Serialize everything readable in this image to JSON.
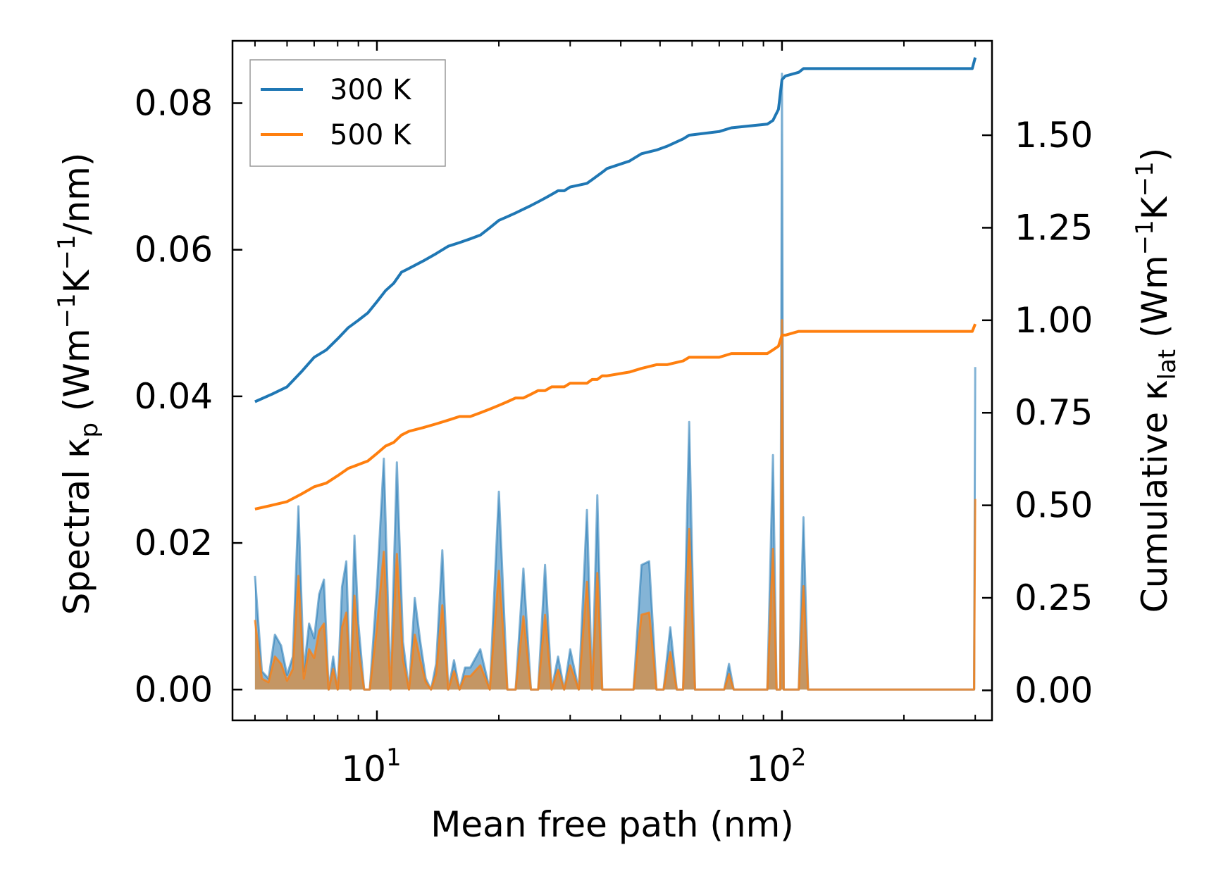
{
  "chart_data": {
    "type": "line",
    "xlabel": "Mean free path (nm)",
    "ylabel_left": {
      "main": "Spectral κ",
      "sub": "p",
      "units_open": " (Wm",
      "exp1": "−1",
      "mid": "K",
      "exp2": "−1",
      "units_close": "/nm)"
    },
    "ylabel_right": {
      "main": "Cumulative κ",
      "sub": "lat",
      "units_open": " (Wm",
      "exp1": "−1",
      "mid": "K",
      "exp2": "−1",
      "units_close": ")"
    },
    "x_scale": "log",
    "xlim": [
      4.4,
      330
    ],
    "ylim_left": [
      -0.0042,
      0.0885
    ],
    "ylim_right": [
      -0.081,
      1.755
    ],
    "x_ticks": [
      {
        "value": 10,
        "base": "10",
        "exp": "1"
      },
      {
        "value": 100,
        "base": "10",
        "exp": "2"
      }
    ],
    "y_ticks_left": [
      {
        "value": 0.0,
        "label": "0.00"
      },
      {
        "value": 0.02,
        "label": "0.02"
      },
      {
        "value": 0.04,
        "label": "0.04"
      },
      {
        "value": 0.06,
        "label": "0.06"
      },
      {
        "value": 0.08,
        "label": "0.08"
      }
    ],
    "y_ticks_right": [
      {
        "value": 0.0,
        "label": "0.00"
      },
      {
        "value": 0.25,
        "label": "0.25"
      },
      {
        "value": 0.5,
        "label": "0.50"
      },
      {
        "value": 0.75,
        "label": "0.75"
      },
      {
        "value": 1.0,
        "label": "1.00"
      },
      {
        "value": 1.25,
        "label": "1.25"
      },
      {
        "value": 1.5,
        "label": "1.50"
      }
    ],
    "legend": {
      "position": "top-left",
      "entries": [
        "300 K",
        "500 K"
      ]
    },
    "colors": {
      "s300": "#1f77b4",
      "s500": "#ff7f0e",
      "fill300": "#1f77b4",
      "fill500": "#d98c3e"
    },
    "spectral_series": [
      {
        "name": "300 K",
        "axis": "left",
        "x": [
          5.0,
          5.2,
          5.4,
          5.6,
          5.8,
          6.0,
          6.2,
          6.4,
          6.6,
          6.8,
          7.0,
          7.2,
          7.4,
          7.6,
          7.8,
          8.0,
          8.2,
          8.4,
          8.6,
          8.8,
          9.0,
          9.3,
          9.6,
          10.0,
          10.4,
          10.8,
          11.2,
          11.6,
          12.0,
          12.4,
          12.8,
          13.2,
          13.6,
          14.0,
          14.5,
          15.0,
          15.5,
          16.0,
          16.5,
          17.0,
          18.0,
          19.0,
          20.0,
          21.0,
          22.0,
          23.0,
          24.0,
          25.0,
          26.0,
          27.0,
          28.0,
          29.0,
          30.0,
          31.5,
          33.0,
          34.0,
          35.0,
          36.0,
          37.0,
          39.0,
          41.0,
          43.0,
          45.0,
          47.0,
          49.0,
          51.0,
          53.0,
          55.0,
          57.0,
          59.0,
          61.0,
          64.0,
          68.0,
          72.0,
          74.0,
          76.0,
          80.0,
          84.0,
          88.0,
          92.0,
          95.0,
          97.0,
          99.0,
          100.0,
          101.0,
          103.0,
          106.0,
          110.0,
          113.0,
          116.0,
          120.0,
          140.0,
          200.0,
          250.0,
          290.0,
          298.0,
          300.0
        ],
        "values": [
          0.0155,
          0.0025,
          0.0015,
          0.0075,
          0.006,
          0.002,
          0.0045,
          0.025,
          0.0025,
          0.009,
          0.007,
          0.013,
          0.015,
          0.0,
          0.0045,
          0.0,
          0.014,
          0.0175,
          0.0,
          0.021,
          0.009,
          0.0,
          0.0,
          0.014,
          0.0315,
          0.0,
          0.031,
          0.0065,
          0.0,
          0.0125,
          0.0065,
          0.0015,
          0.0,
          0.0035,
          0.019,
          0.0,
          0.004,
          0.0,
          0.003,
          0.003,
          0.0055,
          0.0,
          0.027,
          0.0,
          0.0,
          0.0165,
          0.0,
          0.0,
          0.017,
          0.0,
          0.0045,
          0.0,
          0.0055,
          0.0,
          0.0245,
          0.0,
          0.0265,
          0.0,
          0.0,
          0.0,
          0.0,
          0.0,
          0.017,
          0.0175,
          0.0,
          0.0,
          0.0085,
          0.0,
          0.0,
          0.0365,
          0.0,
          0.0,
          0.0,
          0.0,
          0.0035,
          0.0,
          0.0,
          0.0,
          0.0,
          0.0,
          0.032,
          0.0,
          0.0,
          0.084,
          0.0,
          0.0,
          0.0,
          0.0,
          0.0235,
          0.0,
          0.0,
          0.0,
          0.0,
          0.0,
          0.0,
          0.0,
          0.044
        ]
      },
      {
        "name": "500 K",
        "axis": "left",
        "x": [
          5.0,
          5.2,
          5.4,
          5.6,
          5.8,
          6.0,
          6.2,
          6.4,
          6.6,
          6.8,
          7.0,
          7.2,
          7.4,
          7.6,
          7.8,
          8.0,
          8.2,
          8.4,
          8.6,
          8.8,
          9.0,
          9.3,
          9.6,
          10.0,
          10.4,
          10.8,
          11.2,
          11.6,
          12.0,
          12.4,
          12.8,
          13.2,
          13.6,
          14.0,
          14.5,
          15.0,
          15.5,
          16.0,
          16.5,
          17.0,
          18.0,
          19.0,
          20.0,
          21.0,
          22.0,
          23.0,
          24.0,
          25.0,
          26.0,
          27.0,
          28.0,
          29.0,
          30.0,
          31.5,
          33.0,
          34.0,
          35.0,
          36.0,
          37.0,
          39.0,
          41.0,
          43.0,
          45.0,
          47.0,
          49.0,
          51.0,
          53.0,
          55.0,
          57.0,
          59.0,
          61.0,
          64.0,
          68.0,
          72.0,
          74.0,
          76.0,
          80.0,
          84.0,
          88.0,
          92.0,
          95.0,
          97.0,
          99.0,
          100.0,
          101.0,
          103.0,
          106.0,
          110.0,
          113.0,
          116.0,
          120.0,
          140.0,
          200.0,
          250.0,
          290.0,
          298.0,
          300.0
        ],
        "values": [
          0.0095,
          0.0015,
          0.001,
          0.0045,
          0.0035,
          0.0012,
          0.0028,
          0.0155,
          0.0015,
          0.0055,
          0.0043,
          0.008,
          0.009,
          0.0,
          0.0028,
          0.0,
          0.0085,
          0.0105,
          0.0,
          0.0128,
          0.0055,
          0.0,
          0.0,
          0.0085,
          0.0188,
          0.0,
          0.0185,
          0.004,
          0.0,
          0.0075,
          0.004,
          0.001,
          0.0,
          0.0021,
          0.0115,
          0.0,
          0.0025,
          0.0,
          0.0018,
          0.0018,
          0.0033,
          0.0,
          0.0162,
          0.0,
          0.0,
          0.01,
          0.0,
          0.0,
          0.0102,
          0.0,
          0.0027,
          0.0,
          0.0033,
          0.0,
          0.0147,
          0.0,
          0.0159,
          0.0,
          0.0,
          0.0,
          0.0,
          0.0,
          0.0102,
          0.0105,
          0.0,
          0.0,
          0.0051,
          0.0,
          0.0,
          0.0219,
          0.0,
          0.0,
          0.0,
          0.0,
          0.0021,
          0.0,
          0.0,
          0.0,
          0.0,
          0.0,
          0.0192,
          0.0,
          0.0,
          0.0504,
          0.0,
          0.0,
          0.0,
          0.0,
          0.0141,
          0.0,
          0.0,
          0.0,
          0.0,
          0.0,
          0.0,
          0.0,
          0.026
        ]
      }
    ],
    "cumulative_series": [
      {
        "name": "300 K",
        "axis": "right",
        "x": [
          5.0,
          5.5,
          6.0,
          6.5,
          7.0,
          7.5,
          8.0,
          8.5,
          9.0,
          9.5,
          10.0,
          10.5,
          11.0,
          11.5,
          12.0,
          13.0,
          14.0,
          15.0,
          16.0,
          17.0,
          18.0,
          19.0,
          20.0,
          21.0,
          22.0,
          23.0,
          24.0,
          25.0,
          26.0,
          27.0,
          28.0,
          29.0,
          30.0,
          33.0,
          34.0,
          35.0,
          36.0,
          37.0,
          42.0,
          45.0,
          49.0,
          52.0,
          57.0,
          59.0,
          70.0,
          75.0,
          92.0,
          95.0,
          98.0,
          100.0,
          102.0,
          110.0,
          113.0,
          150.0,
          250.0,
          295.0,
          300.0
        ],
        "values": [
          0.78,
          0.8,
          0.82,
          0.86,
          0.9,
          0.92,
          0.95,
          0.98,
          1.0,
          1.02,
          1.05,
          1.08,
          1.1,
          1.13,
          1.14,
          1.16,
          1.18,
          1.2,
          1.21,
          1.22,
          1.23,
          1.25,
          1.27,
          1.28,
          1.29,
          1.3,
          1.31,
          1.32,
          1.33,
          1.34,
          1.35,
          1.35,
          1.36,
          1.37,
          1.38,
          1.39,
          1.4,
          1.41,
          1.43,
          1.45,
          1.46,
          1.47,
          1.49,
          1.5,
          1.51,
          1.52,
          1.53,
          1.54,
          1.57,
          1.65,
          1.66,
          1.67,
          1.68,
          1.68,
          1.68,
          1.68,
          1.71
        ]
      },
      {
        "name": "500 K",
        "axis": "right",
        "x": [
          5.0,
          5.5,
          6.0,
          6.5,
          7.0,
          7.5,
          8.0,
          8.5,
          9.0,
          9.5,
          10.0,
          10.5,
          11.0,
          11.5,
          12.0,
          13.0,
          14.0,
          15.0,
          16.0,
          17.0,
          18.0,
          19.0,
          20.0,
          21.0,
          22.0,
          23.0,
          24.0,
          25.0,
          26.0,
          27.0,
          28.0,
          29.0,
          30.0,
          33.0,
          34.0,
          35.0,
          36.0,
          37.0,
          42.0,
          45.0,
          49.0,
          52.0,
          57.0,
          59.0,
          70.0,
          75.0,
          92.0,
          95.0,
          98.0,
          100.0,
          102.0,
          110.0,
          113.0,
          150.0,
          250.0,
          295.0,
          300.0
        ],
        "values": [
          0.49,
          0.5,
          0.51,
          0.53,
          0.55,
          0.56,
          0.58,
          0.6,
          0.61,
          0.62,
          0.64,
          0.66,
          0.67,
          0.69,
          0.7,
          0.71,
          0.72,
          0.73,
          0.74,
          0.74,
          0.75,
          0.76,
          0.77,
          0.78,
          0.79,
          0.79,
          0.8,
          0.81,
          0.81,
          0.82,
          0.82,
          0.82,
          0.83,
          0.83,
          0.84,
          0.84,
          0.85,
          0.85,
          0.86,
          0.87,
          0.88,
          0.88,
          0.89,
          0.9,
          0.9,
          0.91,
          0.91,
          0.92,
          0.93,
          0.96,
          0.96,
          0.97,
          0.97,
          0.97,
          0.97,
          0.97,
          0.99
        ]
      }
    ]
  }
}
